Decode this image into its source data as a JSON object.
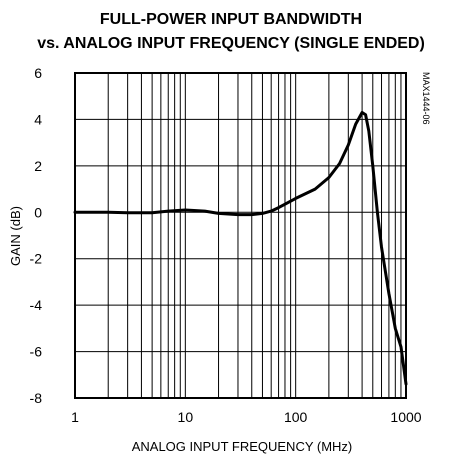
{
  "chart_data": {
    "type": "line",
    "title_line1": "FULL-POWER INPUT BANDWIDTH",
    "title_line2": "vs. ANALOG INPUT FREQUENCY (SINGLE ENDED)",
    "xlabel": "ANALOG INPUT FREQUENCY (MHz)",
    "ylabel": "GAIN (dB)",
    "x_scale": "log",
    "xlim": [
      1,
      1000
    ],
    "ylim": [
      -8,
      6
    ],
    "x_ticks": [
      "1",
      "10",
      "100",
      "1000"
    ],
    "y_ticks": [
      "6",
      "4",
      "2",
      "0",
      "-2",
      "-4",
      "-6",
      "-8"
    ],
    "grid": true,
    "annotation": "MAX1444-06",
    "series": [
      {
        "x": [
          1,
          2,
          3,
          5,
          7,
          10,
          15,
          20,
          30,
          40,
          50,
          60,
          70,
          80,
          100,
          150,
          200,
          250,
          300,
          350,
          400,
          430,
          460,
          500,
          550,
          600,
          700,
          800,
          900,
          1000
        ],
        "y": [
          0,
          0,
          -0.02,
          -0.02,
          0.05,
          0.1,
          0.05,
          -0.05,
          -0.1,
          -0.1,
          -0.05,
          0.05,
          0.2,
          0.35,
          0.6,
          1.0,
          1.5,
          2.1,
          2.9,
          3.8,
          4.3,
          4.2,
          3.5,
          2.0,
          0.0,
          -1.5,
          -3.5,
          -5.0,
          -5.8,
          -7.4
        ]
      }
    ]
  }
}
